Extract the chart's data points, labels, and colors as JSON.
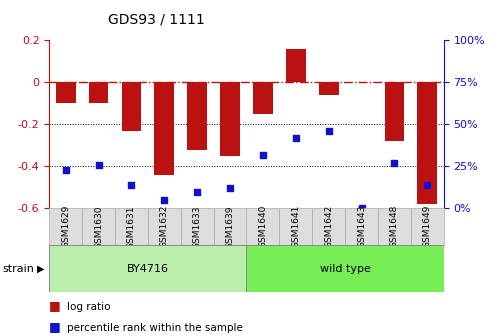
{
  "title": "GDS93 / 1111",
  "samples": [
    "GSM1629",
    "GSM1630",
    "GSM1631",
    "GSM1632",
    "GSM1633",
    "GSM1639",
    "GSM1640",
    "GSM1641",
    "GSM1642",
    "GSM1643",
    "GSM1648",
    "GSM1649"
  ],
  "log_ratio": [
    -0.1,
    -0.1,
    -0.23,
    -0.44,
    -0.32,
    -0.35,
    -0.15,
    0.16,
    -0.06,
    0.0,
    -0.28,
    -0.58
  ],
  "percentile_rank": [
    23,
    26,
    14,
    5,
    10,
    12,
    32,
    42,
    46,
    0,
    27,
    14
  ],
  "bar_color": "#bb1111",
  "dot_color": "#1111cc",
  "ylim_left": [
    -0.6,
    0.2
  ],
  "ylim_right": [
    0,
    100
  ],
  "strain_groups": [
    {
      "label": "BY4716",
      "start": 0,
      "end": 6,
      "color": "#bbeeaa"
    },
    {
      "label": "wild type",
      "start": 6,
      "end": 12,
      "color": "#77ee55"
    }
  ],
  "strain_label": "strain",
  "dotted_line_values": [
    -0.2,
    -0.4
  ],
  "right_yticks": [
    0,
    25,
    50,
    75,
    100
  ],
  "right_yticklabels": [
    "0%",
    "25%",
    "50%",
    "75%",
    "100%"
  ],
  "left_yticks": [
    -0.6,
    -0.4,
    -0.2,
    0.0,
    0.2
  ],
  "left_yticklabels": [
    "-0.6",
    "-0.4",
    "-0.2",
    "0",
    "0.2"
  ],
  "background_color": "#ffffff",
  "bar_width": 0.6,
  "dot_size": 22
}
